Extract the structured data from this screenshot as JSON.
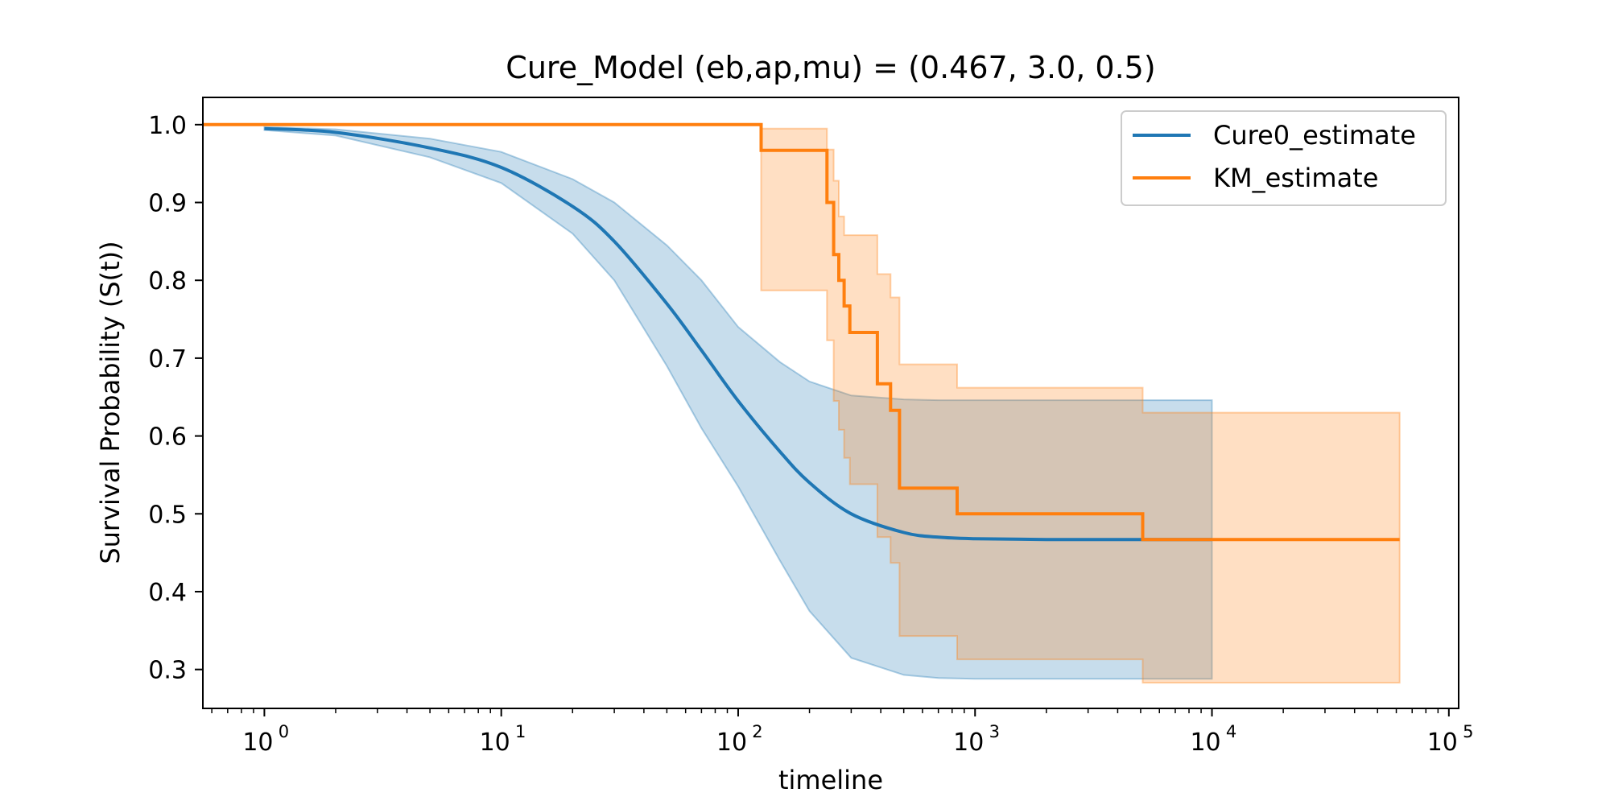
{
  "chart_data": {
    "type": "line",
    "title": "Cure_Model (eb,ap,mu) = (0.467, 3.0, 0.5)",
    "xlabel": "timeline",
    "ylabel": "Survival Probability (S(t))",
    "xscale": "log",
    "xlim": [
      0.55,
      110000
    ],
    "ylim": [
      0.25,
      1.035
    ],
    "x_ticks": [
      {
        "base": "10",
        "exp": "0"
      },
      {
        "base": "10",
        "exp": "1"
      },
      {
        "base": "10",
        "exp": "2"
      },
      {
        "base": "10",
        "exp": "3"
      },
      {
        "base": "10",
        "exp": "4"
      },
      {
        "base": "10",
        "exp": "5"
      }
    ],
    "y_ticks": [
      "0.3",
      "0.4",
      "0.5",
      "0.6",
      "0.7",
      "0.8",
      "0.9",
      "1.0"
    ],
    "grid": false,
    "legend_position": "top-right",
    "series": [
      {
        "name": "Cure0_estimate",
        "color": "#1f77b4",
        "style": "smooth",
        "x": [
          1,
          2,
          5,
          10,
          20,
          30,
          50,
          70,
          100,
          150,
          200,
          300,
          500,
          700,
          1000,
          2000,
          5000,
          10000
        ],
        "values": [
          0.995,
          0.99,
          0.97,
          0.945,
          0.895,
          0.85,
          0.77,
          0.71,
          0.645,
          0.58,
          0.54,
          0.5,
          0.476,
          0.47,
          0.468,
          0.467,
          0.467,
          0.467
        ],
        "ci_upper": [
          0.997,
          0.994,
          0.982,
          0.965,
          0.93,
          0.9,
          0.845,
          0.8,
          0.74,
          0.695,
          0.67,
          0.652,
          0.647,
          0.646,
          0.646,
          0.646,
          0.646,
          0.646
        ],
        "ci_lower": [
          0.993,
          0.986,
          0.958,
          0.925,
          0.86,
          0.8,
          0.69,
          0.61,
          0.535,
          0.44,
          0.375,
          0.315,
          0.293,
          0.289,
          0.288,
          0.288,
          0.288,
          0.288
        ]
      },
      {
        "name": "KM_estimate",
        "color": "#ff7f0e",
        "style": "step",
        "x": [
          0.55,
          125,
          237,
          253,
          266,
          280,
          296,
          387,
          440,
          480,
          840,
          5100,
          62000
        ],
        "values": [
          1.0,
          0.967,
          0.9,
          0.833,
          0.8,
          0.767,
          0.733,
          0.667,
          0.633,
          0.533,
          0.5,
          0.467,
          0.467
        ],
        "ci_upper": [
          1.0,
          0.995,
          0.968,
          0.928,
          0.882,
          0.858,
          0.858,
          0.808,
          0.778,
          0.692,
          0.662,
          0.63,
          0.63
        ],
        "ci_lower": [
          1.0,
          0.787,
          0.723,
          0.645,
          0.608,
          0.572,
          0.538,
          0.47,
          0.437,
          0.343,
          0.313,
          0.283,
          0.283
        ]
      }
    ]
  }
}
